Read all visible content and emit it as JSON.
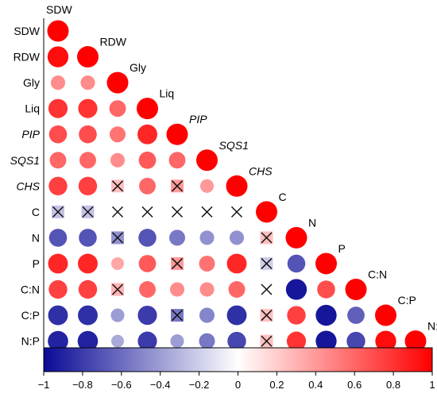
{
  "chart_data": {
    "type": "heatmap",
    "style": "lower-triangular correlation matrix, circles sized and colored by r, x marks non-significant",
    "variables": [
      "SDW",
      "RDW",
      "Gly",
      "Liq",
      "PIP",
      "SQS1",
      "CHS",
      "C",
      "N",
      "P",
      "C:N",
      "C:P",
      "N:P"
    ],
    "italic_variables": [
      "PIP",
      "SQS1",
      "CHS"
    ],
    "matrix": [
      [
        1.0
      ],
      [
        0.95,
        1.0
      ],
      [
        0.45,
        0.45,
        1.0
      ],
      [
        0.8,
        0.8,
        0.6,
        1.0
      ],
      [
        0.7,
        0.7,
        0.55,
        0.85,
        1.0
      ],
      [
        0.6,
        0.6,
        0.45,
        0.65,
        0.6,
        1.0
      ],
      [
        0.75,
        0.75,
        0.25,
        0.6,
        0.4,
        0.4,
        1.0
      ],
      [
        -0.25,
        -0.25,
        0.05,
        0.05,
        0.05,
        0.05,
        0.05,
        1.0
      ],
      [
        -0.7,
        -0.7,
        -0.45,
        -0.7,
        -0.55,
        -0.45,
        -0.45,
        0.25,
        1.0
      ],
      [
        0.85,
        0.85,
        0.35,
        0.65,
        0.4,
        0.55,
        0.85,
        -0.2,
        -0.7,
        1.0
      ],
      [
        0.75,
        0.75,
        0.3,
        0.6,
        0.45,
        0.45,
        0.6,
        0.05,
        -0.95,
        0.7,
        1.0
      ],
      [
        -0.85,
        -0.85,
        -0.4,
        -0.8,
        -0.55,
        -0.5,
        -0.85,
        0.25,
        0.75,
        -0.95,
        -0.65,
        1.0
      ],
      [
        -0.9,
        -0.9,
        -0.35,
        -0.8,
        -0.4,
        -0.55,
        -0.75,
        0.25,
        0.8,
        -0.95,
        -0.75,
        0.95,
        1.0
      ]
    ],
    "nonsignificant": [
      [
        7,
        0
      ],
      [
        7,
        1
      ],
      [
        7,
        2
      ],
      [
        7,
        3
      ],
      [
        7,
        4
      ],
      [
        7,
        5
      ],
      [
        7,
        6
      ],
      [
        6,
        2
      ],
      [
        6,
        4
      ],
      [
        8,
        2
      ],
      [
        8,
        7
      ],
      [
        9,
        4
      ],
      [
        9,
        7
      ],
      [
        10,
        2
      ],
      [
        10,
        7
      ],
      [
        11,
        4
      ],
      [
        11,
        7
      ],
      [
        12,
        7
      ]
    ],
    "colorbar": {
      "range": [
        -1,
        1
      ],
      "ticks": [
        "−1",
        "−0.8",
        "−0.6",
        "−0.4",
        "−0.2",
        "0",
        "0.2",
        "0.4",
        "0.6",
        "0.8",
        "1"
      ],
      "colors": {
        "negative": "#0a0a96",
        "zero": "#ffffff",
        "positive": "#ff0000"
      }
    }
  }
}
